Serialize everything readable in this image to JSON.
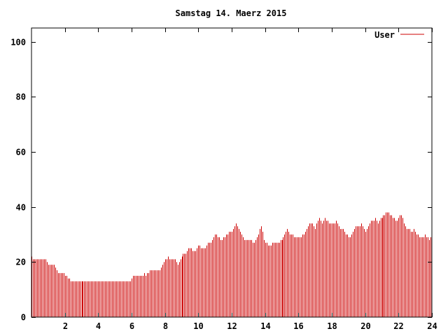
{
  "chart_data": {
    "type": "bar",
    "title": "Samstag 14. Maerz 2015",
    "xlabel": "",
    "ylabel": "",
    "xlim": [
      0,
      24
    ],
    "ylim": [
      0,
      105
    ],
    "xticks": [
      2,
      4,
      6,
      8,
      10,
      12,
      14,
      16,
      18,
      20,
      22,
      24
    ],
    "yticks": [
      0,
      20,
      40,
      60,
      80,
      100
    ],
    "grid": false,
    "legend_position": "top-right",
    "colors": {
      "series": "#cc0000",
      "frame": "#000000"
    },
    "series": [
      {
        "name": "User",
        "x_interval_minutes": 5,
        "values": [
          22,
          21,
          21,
          21,
          21,
          21,
          21,
          21,
          21,
          21,
          21,
          20,
          19,
          19,
          19,
          19,
          19,
          18,
          17,
          16,
          16,
          16,
          16,
          16,
          15,
          15,
          14,
          14,
          13,
          13,
          13,
          13,
          13,
          13,
          13,
          13,
          13,
          13,
          13,
          13,
          13,
          13,
          13,
          13,
          13,
          13,
          13,
          13,
          13,
          13,
          13,
          13,
          13,
          13,
          13,
          13,
          13,
          13,
          13,
          13,
          13,
          13,
          13,
          13,
          13,
          13,
          13,
          13,
          13,
          13,
          13,
          13,
          14,
          15,
          15,
          15,
          15,
          15,
          15,
          15,
          15,
          16,
          15,
          16,
          16,
          17,
          17,
          17,
          17,
          17,
          17,
          17,
          17,
          18,
          19,
          20,
          21,
          21,
          22,
          21,
          21,
          21,
          21,
          21,
          20,
          19,
          20,
          21,
          22,
          23,
          23,
          23,
          24,
          25,
          25,
          25,
          24,
          24,
          24,
          25,
          26,
          26,
          25,
          25,
          25,
          25,
          26,
          27,
          27,
          27,
          28,
          29,
          30,
          30,
          29,
          29,
          28,
          28,
          29,
          29,
          30,
          30,
          31,
          31,
          31,
          32,
          33,
          34,
          33,
          32,
          31,
          30,
          29,
          28,
          28,
          28,
          28,
          28,
          28,
          27,
          27,
          28,
          29,
          30,
          32,
          33,
          31,
          28,
          27,
          27,
          26,
          26,
          26,
          27,
          27,
          27,
          27,
          27,
          27,
          28,
          28,
          29,
          30,
          31,
          32,
          31,
          30,
          30,
          30,
          29,
          29,
          29,
          29,
          29,
          29,
          30,
          30,
          31,
          32,
          33,
          34,
          34,
          34,
          33,
          32,
          34,
          35,
          36,
          35,
          34,
          35,
          36,
          35,
          35,
          34,
          34,
          34,
          34,
          34,
          35,
          34,
          33,
          32,
          32,
          32,
          31,
          30,
          30,
          29,
          29,
          30,
          31,
          32,
          33,
          33,
          33,
          33,
          34,
          33,
          32,
          31,
          32,
          33,
          34,
          35,
          35,
          35,
          36,
          35,
          34,
          35,
          36,
          36,
          37,
          37,
          38,
          38,
          38,
          37,
          37,
          36,
          36,
          35,
          35,
          36,
          37,
          37,
          36,
          34,
          33,
          32,
          32,
          32,
          31,
          31,
          32,
          31,
          30,
          30,
          29,
          29,
          29,
          29,
          30,
          29,
          29,
          28,
          29
        ]
      }
    ]
  }
}
